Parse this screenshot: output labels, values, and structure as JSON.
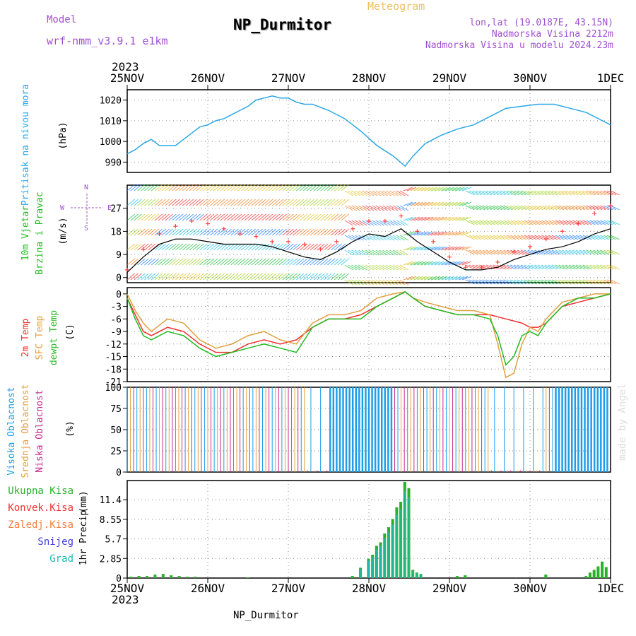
{
  "header": {
    "model_label": "Model",
    "model_name": "wrf-nmm_v3.9.1  e1km",
    "station_title": "NP_Durmitor",
    "product_title": "Meteogram",
    "coords": "lon,lat (19.0187E, 43.15N)",
    "elevation": "Nadmorska Visina 2212m",
    "model_elevation": "Nadmorska Visina u modelu 2024.23m",
    "top_year": "2023",
    "bottom_year": "2023",
    "footer_station": "NP_Durmitor",
    "credit": "made by Angel"
  },
  "colors": {
    "pressure": "#2aa7e8",
    "temp2m": "#f03030",
    "sfc_temp": "#e0a040",
    "dewpt": "#22bb22",
    "high_cloud": "#1e9ee8",
    "mid_cloud": "#e0a040",
    "low_cloud": "#c8288c",
    "total_precip": "#2ab02a",
    "snow": "#4040d8",
    "grad": "#20b8b8",
    "conv_precip": "#f03030",
    "frozen_precip": "#f08040"
  },
  "chart_data": [
    {
      "type": "line",
      "name": "pressure",
      "ylabel_line1": "Pritisak na nivou mora",
      "unit": "(hPa)",
      "xlim_days": [
        0,
        6
      ],
      "ylim": [
        985,
        1025
      ],
      "yticks": [
        "990",
        "1000",
        "1010",
        "1020"
      ],
      "ytick_values": [
        990,
        1000,
        1010,
        1020
      ],
      "x_ticks": [
        "25NOV",
        "26NOV",
        "27NOV",
        "28NOV",
        "29NOV",
        "30NOV",
        "1DEC"
      ],
      "series": [
        {
          "x": [
            0,
            0.1,
            0.2,
            0.3,
            0.4,
            0.5,
            0.6,
            0.7,
            0.8,
            0.9,
            1.0,
            1.1,
            1.2,
            1.3,
            1.4,
            1.5,
            1.6,
            1.7,
            1.8,
            1.9,
            2.0,
            2.1,
            2.2,
            2.3,
            2.5,
            2.7,
            2.9,
            3.1,
            3.3,
            3.45,
            3.55,
            3.7,
            3.9,
            4.1,
            4.3,
            4.5,
            4.7,
            4.9,
            5.1,
            5.3,
            5.5,
            5.7,
            5.9,
            6.0
          ],
          "y": [
            994,
            996,
            999,
            1001,
            998,
            998,
            998,
            1001,
            1004,
            1007,
            1008,
            1010,
            1011,
            1013,
            1015,
            1017,
            1020,
            1021,
            1022,
            1021,
            1021,
            1019,
            1018,
            1018,
            1015,
            1011,
            1005,
            998,
            993,
            988,
            993,
            999,
            1003,
            1006,
            1008,
            1012,
            1016,
            1017,
            1018,
            1018,
            1016,
            1014,
            1010,
            1008
          ]
        }
      ]
    },
    {
      "type": "line",
      "name": "wind",
      "ylabel_line1": "10m Vjetar",
      "ylabel_line2": "Brzina i Pravac",
      "unit": "(m/s)",
      "compass": [
        "N",
        "W",
        "E",
        "S"
      ],
      "ylim": [
        -2,
        36
      ],
      "yticks": [
        "0",
        "9",
        "18",
        "27"
      ],
      "ytick_values": [
        0,
        9,
        18,
        27
      ],
      "series": [
        {
          "name": "speed",
          "x": [
            0,
            0.2,
            0.4,
            0.6,
            0.8,
            1.0,
            1.2,
            1.4,
            1.6,
            1.8,
            2.0,
            2.2,
            2.4,
            2.6,
            2.8,
            3.0,
            3.2,
            3.4,
            3.6,
            3.8,
            4.0,
            4.2,
            4.4,
            4.6,
            4.8,
            5.0,
            5.2,
            5.4,
            5.6,
            5.8,
            6.0
          ],
          "y": [
            2,
            8,
            13,
            15,
            15,
            14,
            13,
            13,
            13,
            12,
            10,
            8,
            7,
            10,
            14,
            17,
            16,
            19,
            14,
            10,
            6,
            3,
            3,
            4,
            7,
            9,
            11,
            12,
            14,
            17,
            19
          ]
        },
        {
          "name": "gust",
          "x": [
            0,
            0.2,
            0.4,
            0.6,
            0.8,
            1.0,
            1.2,
            1.4,
            1.6,
            1.8,
            2.0,
            2.2,
            2.4,
            2.6,
            2.8,
            3.0,
            3.2,
            3.4,
            3.6,
            3.8,
            4.0,
            4.2,
            4.4,
            4.6,
            4.8,
            5.0,
            5.2,
            5.4,
            5.6,
            5.8,
            6.0
          ],
          "y": [
            3,
            11,
            17,
            20,
            22,
            21,
            19,
            17,
            16,
            14,
            14,
            13,
            11,
            14,
            19,
            22,
            22,
            24,
            18,
            14,
            8,
            4,
            4,
            6,
            10,
            12,
            15,
            18,
            21,
            25,
            28
          ]
        }
      ]
    },
    {
      "type": "line",
      "name": "temperature",
      "legend": [
        "2m Temp",
        "SFC Temp",
        "dewpt Temp"
      ],
      "unit": "(C)",
      "ylim": [
        -21,
        1.5
      ],
      "yticks": [
        "0",
        "-3",
        "-6",
        "-9",
        "-12",
        "-15",
        "-18",
        "-21"
      ],
      "ytick_values": [
        0,
        -3,
        -6,
        -9,
        -12,
        -15,
        -18,
        -21
      ],
      "series": [
        {
          "name": "2m Temp",
          "x": [
            0,
            0.1,
            0.2,
            0.3,
            0.5,
            0.7,
            0.9,
            1.1,
            1.3,
            1.5,
            1.7,
            1.9,
            2.1,
            2.3,
            2.5,
            2.7,
            2.9,
            3.1,
            3.3,
            3.45,
            3.55,
            3.7,
            3.9,
            4.1,
            4.3,
            4.5,
            4.7,
            4.9,
            5.0,
            5.1,
            5.2,
            5.4,
            5.6,
            5.8,
            6.0
          ],
          "y": [
            -1,
            -5,
            -9,
            -10,
            -8,
            -9,
            -12,
            -14,
            -14,
            -12,
            -11,
            -12,
            -11,
            -8,
            -6,
            -6,
            -5,
            -3,
            -1,
            0.5,
            -1,
            -3,
            -4,
            -5,
            -5,
            -5,
            -6,
            -7,
            -8,
            -8,
            -7,
            -3,
            -2,
            -1,
            0
          ]
        },
        {
          "name": "SFC Temp",
          "x": [
            0,
            0.1,
            0.2,
            0.3,
            0.5,
            0.7,
            0.9,
            1.1,
            1.3,
            1.5,
            1.7,
            1.9,
            2.1,
            2.3,
            2.5,
            2.7,
            2.9,
            3.1,
            3.3,
            3.45,
            3.55,
            3.7,
            3.9,
            4.1,
            4.3,
            4.5,
            4.6,
            4.7,
            4.8,
            4.9,
            5.0,
            5.1,
            5.2,
            5.4,
            5.6,
            5.8,
            6.0
          ],
          "y": [
            0,
            -4,
            -7,
            -9,
            -6,
            -7,
            -11,
            -13,
            -12,
            -10,
            -9,
            -11,
            -12,
            -7,
            -5,
            -5,
            -4,
            -1,
            0,
            0.5,
            -1,
            -2,
            -3,
            -4,
            -4,
            -5,
            -12,
            -20,
            -19,
            -12,
            -8,
            -9,
            -6,
            -2,
            -1,
            0,
            0
          ]
        },
        {
          "name": "dewpt Temp",
          "x": [
            0,
            0.1,
            0.2,
            0.3,
            0.5,
            0.7,
            0.9,
            1.1,
            1.3,
            1.5,
            1.7,
            1.9,
            2.1,
            2.3,
            2.5,
            2.7,
            2.9,
            3.1,
            3.3,
            3.45,
            3.55,
            3.7,
            3.9,
            4.1,
            4.3,
            4.5,
            4.6,
            4.7,
            4.8,
            4.9,
            5.0,
            5.1,
            5.2,
            5.4,
            5.6,
            5.8,
            6.0
          ],
          "y": [
            -1,
            -6,
            -10,
            -11,
            -9,
            -10,
            -13,
            -15,
            -14,
            -13,
            -12,
            -13,
            -14,
            -8,
            -6,
            -6,
            -6,
            -3,
            -1,
            0.5,
            -1,
            -3,
            -4,
            -5,
            -5,
            -6,
            -10,
            -17,
            -15,
            -10,
            -9,
            -10,
            -7,
            -3,
            -1,
            -1,
            0
          ]
        }
      ]
    },
    {
      "type": "bar",
      "name": "cloud",
      "legend": [
        "Visoka Oblacnost",
        "Srednja Oblacnost",
        "Niska Oblacnost"
      ],
      "unit": "(%)",
      "ylim": [
        0,
        100
      ],
      "yticks": [
        "0",
        "25",
        "50",
        "75",
        "100"
      ],
      "ytick_values": [
        0,
        25,
        50,
        75,
        100
      ]
    },
    {
      "type": "bar",
      "name": "precip",
      "legend": [
        "Ukupna Kisa",
        "Konvek.Kisa",
        "Zaledj.Kisa",
        "Snijeg",
        "Grad"
      ],
      "ylabel_line1": "1hr Precip",
      "unit": "(mm)",
      "ylim": [
        0,
        14.2
      ],
      "yticks": [
        "0",
        "2.85",
        "5.7",
        "8.55",
        "11.4"
      ],
      "ytick_values": [
        0,
        2.85,
        5.7,
        8.55,
        11.4
      ],
      "x": [
        0.05,
        0.15,
        0.25,
        0.35,
        0.45,
        0.55,
        0.65,
        0.75,
        0.85,
        1.5,
        2.8,
        2.9,
        3.0,
        3.05,
        3.1,
        3.15,
        3.2,
        3.25,
        3.3,
        3.35,
        3.4,
        3.45,
        3.5,
        3.55,
        3.6,
        3.65,
        4.1,
        4.2,
        5.2,
        5.7,
        5.75,
        5.8,
        5.85,
        5.9,
        5.95
      ],
      "values": [
        0.2,
        0.3,
        0.3,
        0.5,
        0.6,
        0.4,
        0.3,
        0.2,
        0.2,
        0.1,
        0.3,
        1.5,
        2.8,
        3.4,
        4.7,
        5.2,
        6.5,
        7.4,
        8.6,
        10.3,
        11.1,
        14.0,
        13.1,
        1.2,
        0.8,
        0.6,
        0.3,
        0.4,
        0.5,
        0.3,
        0.8,
        1.2,
        1.7,
        2.4,
        1.6
      ]
    }
  ]
}
